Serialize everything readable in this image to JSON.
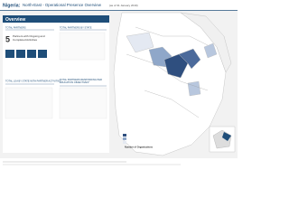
{
  "header": {
    "country": "Nigeria:",
    "title": "North-East - Operational Presence Overview",
    "date": "(as of 31 January 2019)"
  },
  "overview": {
    "heading": "Overview",
    "total_partners": {
      "label": "TOTAL PARTNERS",
      "value": 5,
      "caption": "Partners with Ongoing and Completed Activities"
    },
    "by_state": "TOTAL PARTNERS BY STATE",
    "lga": "TOTAL LGA BY STATE WITH PARTNER ACTIVITIES",
    "objectives": "TOTAL PARTNERS RESPONDING PER EDUCATION OBJECTIVES*"
  },
  "legend": {
    "title": "Number of Organisations"
  }
}
